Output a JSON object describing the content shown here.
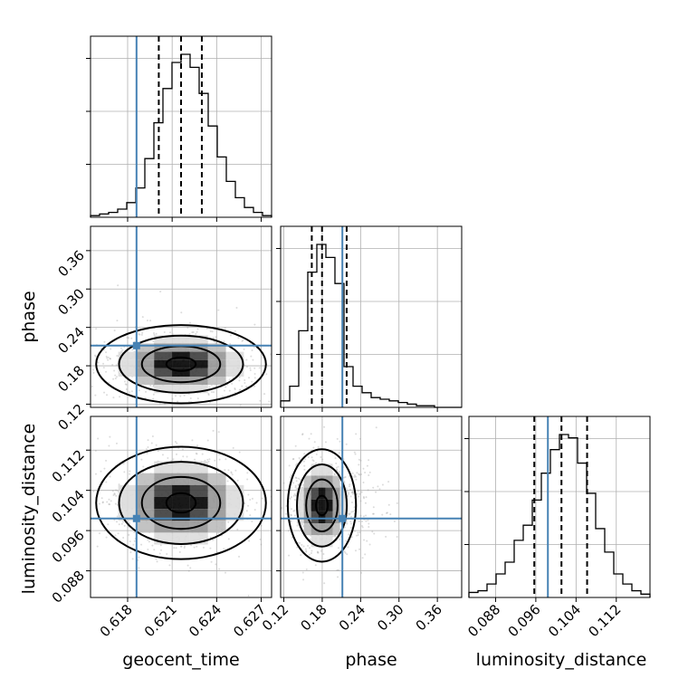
{
  "chart_data": {
    "type": "corner",
    "parameters": [
      "geocent_time",
      "phase",
      "luminosity_distance"
    ],
    "axes": {
      "geocent_time": {
        "range": [
          0.6155,
          0.6277
        ],
        "ticks": [
          "0.618",
          "0.621",
          "0.624",
          "0.627"
        ],
        "tick_values": [
          0.618,
          0.621,
          0.624,
          0.627
        ]
      },
      "phase": {
        "range": [
          0.115,
          0.398
        ],
        "ticks": [
          "0.12",
          "0.18",
          "0.24",
          "0.30",
          "0.36"
        ],
        "tick_values": [
          0.12,
          0.18,
          0.24,
          0.3,
          0.36
        ]
      },
      "luminosity_distance": {
        "range": [
          0.0827,
          0.1187
        ],
        "ticks": [
          "0.088",
          "0.096",
          "0.104",
          "0.112"
        ],
        "tick_values": [
          0.088,
          0.096,
          0.104,
          0.112
        ]
      }
    },
    "truths": {
      "geocent_time": 0.6186,
      "phase": 0.2115,
      "luminosity_distance": 0.0984
    },
    "quantiles": {
      "geocent_time": [
        0.6201,
        0.6216,
        0.623
      ],
      "phase": [
        0.1637,
        0.1797,
        0.2182
      ],
      "luminosity_distance": [
        0.0957,
        0.1011,
        0.1062
      ]
    },
    "histograms": {
      "geocent_time": [
        1,
        2,
        3,
        5,
        9,
        18,
        36,
        58,
        79,
        95,
        100,
        92,
        76,
        56,
        37,
        22,
        12,
        6,
        3,
        1
      ],
      "phase": [
        4,
        13,
        47,
        83,
        100,
        92,
        76,
        25,
        13,
        9,
        6,
        5,
        4,
        3,
        2,
        1,
        1,
        0,
        0,
        0
      ],
      "luminosity_distance": [
        3,
        4,
        8,
        14,
        21,
        34,
        43,
        58,
        74,
        88,
        97,
        95,
        80,
        62,
        41,
        27,
        14,
        8,
        4,
        2
      ]
    },
    "peaks_2d": {
      "phase_vs_geocent_time": {
        "x": 0.6216,
        "y": 0.1825,
        "sx": 0.0022,
        "sy": 0.0235
      },
      "luminosity_distance_vs_geocent_time": {
        "x": 0.6216,
        "y": 0.1015,
        "sx": 0.0022,
        "sy": 0.0043
      },
      "luminosity_distance_vs_phase": {
        "x": 0.1795,
        "y": 0.101,
        "sx": 0.0205,
        "sy": 0.0043
      }
    },
    "xlabels": [
      "geocent_time",
      "phase",
      "luminosity_distance"
    ],
    "ylabels": [
      "",
      "phase",
      "luminosity_distance"
    ],
    "grid": true,
    "colors": {
      "truth": "#4682b4",
      "line": "#000000",
      "scatter": "#9a9a9a"
    }
  }
}
